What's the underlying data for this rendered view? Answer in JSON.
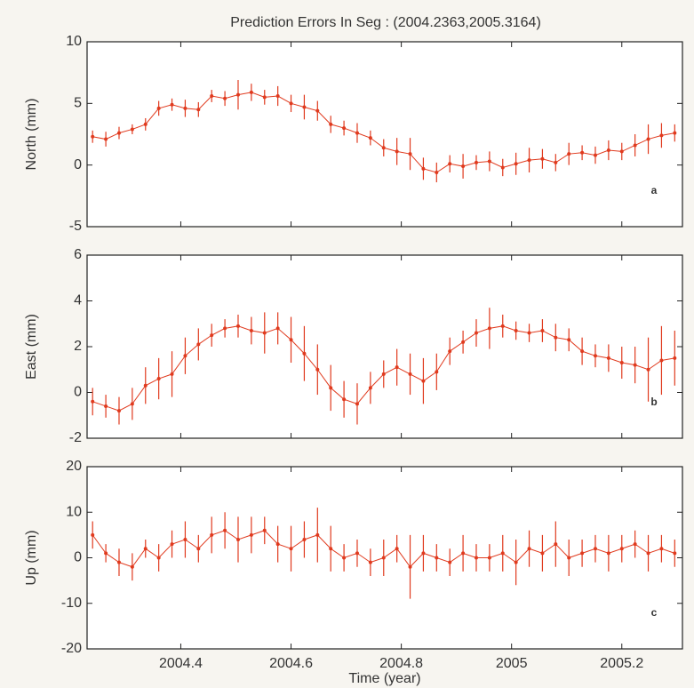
{
  "chart_data": [
    {
      "type": "errorbar",
      "title": "Prediction Errors In Seg : (2004.2363,2005.3164)",
      "ylabel": "North (mm)",
      "annotation": "a",
      "color": "#e03a1e",
      "x": [
        2004.24,
        2004.264,
        2004.288,
        2004.312,
        2004.336,
        2004.36,
        2004.384,
        2004.408,
        2004.432,
        2004.456,
        2004.48,
        2004.504,
        2004.528,
        2004.552,
        2004.576,
        2004.6,
        2004.624,
        2004.648,
        2004.672,
        2004.696,
        2004.72,
        2004.744,
        2004.768,
        2004.792,
        2004.816,
        2004.84,
        2004.864,
        2004.888,
        2004.912,
        2004.936,
        2004.96,
        2004.984,
        2005.008,
        2005.032,
        2005.056,
        2005.08,
        2005.104,
        2005.128,
        2005.152,
        2005.176,
        2005.2,
        2005.224,
        2005.248,
        2005.272,
        2005.296
      ],
      "values": [
        2.3,
        2.1,
        2.6,
        2.9,
        3.3,
        4.6,
        4.9,
        4.6,
        4.5,
        5.6,
        5.4,
        5.7,
        5.9,
        5.5,
        5.6,
        5.0,
        4.7,
        4.4,
        3.3,
        3.0,
        2.6,
        2.2,
        1.4,
        1.1,
        0.9,
        -0.3,
        -0.6,
        0.1,
        -0.1,
        0.2,
        0.3,
        -0.2,
        0.1,
        0.4,
        0.5,
        0.2,
        0.9,
        1.0,
        0.8,
        1.2,
        1.1,
        1.6,
        2.1,
        2.4,
        2.6
      ],
      "errors": [
        0.5,
        0.6,
        0.5,
        0.4,
        0.5,
        0.6,
        0.5,
        0.7,
        0.6,
        0.5,
        0.6,
        1.2,
        0.7,
        0.6,
        0.8,
        0.7,
        1.0,
        0.8,
        0.7,
        0.6,
        0.8,
        0.6,
        0.7,
        1.1,
        1.3,
        0.9,
        0.8,
        0.7,
        1.0,
        0.6,
        0.8,
        0.7,
        0.9,
        1.0,
        0.8,
        0.7,
        0.9,
        0.6,
        0.7,
        0.8,
        0.7,
        0.9,
        1.2,
        1.0,
        0.7
      ],
      "xlim": [
        2004.23,
        2005.31
      ],
      "ylim": [
        -5,
        10
      ],
      "yticks": [
        -5,
        0,
        5,
        10
      ]
    },
    {
      "type": "errorbar",
      "ylabel": "East (mm)",
      "annotation": "b",
      "color": "#e03a1e",
      "x": [
        2004.24,
        2004.264,
        2004.288,
        2004.312,
        2004.336,
        2004.36,
        2004.384,
        2004.408,
        2004.432,
        2004.456,
        2004.48,
        2004.504,
        2004.528,
        2004.552,
        2004.576,
        2004.6,
        2004.624,
        2004.648,
        2004.672,
        2004.696,
        2004.72,
        2004.744,
        2004.768,
        2004.792,
        2004.816,
        2004.84,
        2004.864,
        2004.888,
        2004.912,
        2004.936,
        2004.96,
        2004.984,
        2005.008,
        2005.032,
        2005.056,
        2005.08,
        2005.104,
        2005.128,
        2005.152,
        2005.176,
        2005.2,
        2005.224,
        2005.248,
        2005.272,
        2005.296
      ],
      "values": [
        -0.4,
        -0.6,
        -0.8,
        -0.5,
        0.3,
        0.6,
        0.8,
        1.6,
        2.1,
        2.5,
        2.8,
        2.9,
        2.7,
        2.6,
        2.8,
        2.3,
        1.7,
        1.0,
        0.2,
        -0.3,
        -0.5,
        0.2,
        0.8,
        1.1,
        0.8,
        0.5,
        0.9,
        1.8,
        2.2,
        2.6,
        2.8,
        2.9,
        2.7,
        2.6,
        2.7,
        2.4,
        2.3,
        1.8,
        1.6,
        1.5,
        1.3,
        1.2,
        1.0,
        1.4,
        1.5
      ],
      "errors": [
        0.6,
        0.5,
        0.6,
        0.7,
        0.8,
        0.9,
        1.0,
        0.8,
        0.7,
        0.5,
        0.4,
        0.5,
        0.6,
        0.9,
        0.7,
        1.0,
        1.2,
        1.1,
        1.0,
        0.8,
        0.9,
        0.7,
        0.6,
        0.8,
        0.9,
        1.0,
        0.8,
        0.6,
        0.5,
        0.6,
        0.9,
        0.5,
        0.4,
        0.4,
        0.5,
        0.6,
        0.5,
        0.6,
        0.5,
        0.6,
        0.7,
        0.8,
        1.4,
        1.5,
        1.2
      ],
      "xlim": [
        2004.23,
        2005.31
      ],
      "ylim": [
        -2,
        6
      ],
      "yticks": [
        -2,
        0,
        2,
        4,
        6
      ]
    },
    {
      "type": "errorbar",
      "ylabel": "Up (mm)",
      "xlabel": "Time (year)",
      "annotation": "c",
      "color": "#e03a1e",
      "x": [
        2004.24,
        2004.264,
        2004.288,
        2004.312,
        2004.336,
        2004.36,
        2004.384,
        2004.408,
        2004.432,
        2004.456,
        2004.48,
        2004.504,
        2004.528,
        2004.552,
        2004.576,
        2004.6,
        2004.624,
        2004.648,
        2004.672,
        2004.696,
        2004.72,
        2004.744,
        2004.768,
        2004.792,
        2004.816,
        2004.84,
        2004.864,
        2004.888,
        2004.912,
        2004.936,
        2004.96,
        2004.984,
        2005.008,
        2005.032,
        2005.056,
        2005.08,
        2005.104,
        2005.128,
        2005.152,
        2005.176,
        2005.2,
        2005.224,
        2005.248,
        2005.272,
        2005.296
      ],
      "values": [
        5,
        1,
        -1,
        -2,
        2,
        0,
        3,
        4,
        2,
        5,
        6,
        4,
        5,
        6,
        3,
        2,
        4,
        5,
        2,
        0,
        1,
        -1,
        0,
        2,
        -2,
        1,
        0,
        -1,
        1,
        0,
        0,
        1,
        -1,
        2,
        1,
        3,
        0,
        1,
        2,
        1,
        2,
        3,
        1,
        2,
        1
      ],
      "errors": [
        3,
        2,
        3,
        3,
        2,
        3,
        3,
        4,
        3,
        4,
        4,
        5,
        4,
        3,
        4,
        5,
        4,
        6,
        5,
        3,
        3,
        3,
        4,
        3,
        7,
        4,
        3,
        3,
        4,
        3,
        3,
        4,
        5,
        4,
        4,
        5,
        4,
        3,
        3,
        4,
        3,
        3,
        4,
        3,
        3
      ],
      "xlim": [
        2004.23,
        2005.31
      ],
      "ylim": [
        -20,
        20
      ],
      "yticks": [
        -20,
        -10,
        0,
        10,
        20
      ],
      "xticks": [
        2004.4,
        2004.6,
        2004.8,
        2005,
        2005.2
      ]
    }
  ]
}
